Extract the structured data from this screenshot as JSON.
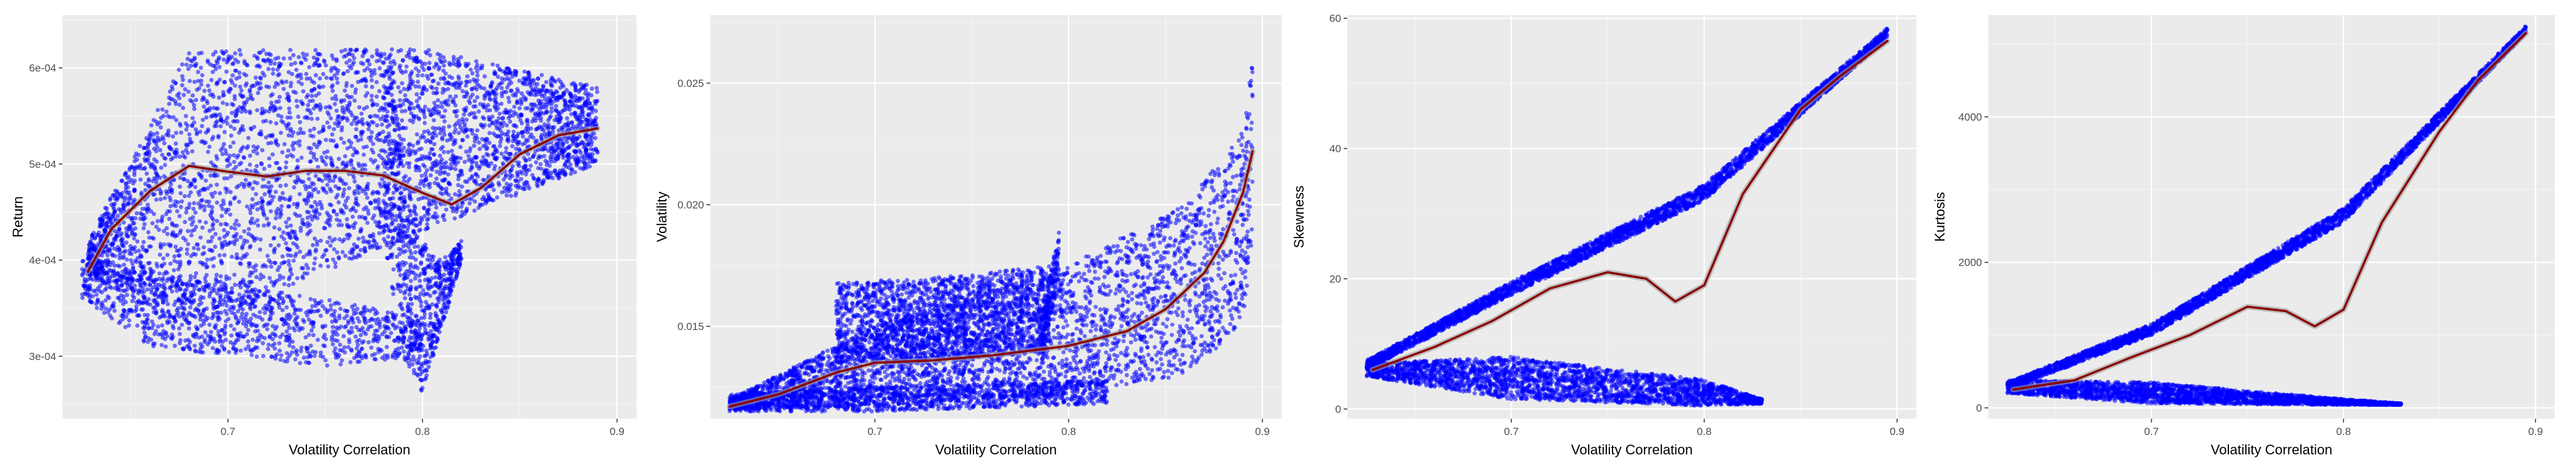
{
  "colors": {
    "panel_background": "#ebebeb",
    "grid_major": "#ffffff",
    "grid_minor": "#f5f5f5",
    "points": "#0000ff",
    "smooth_line": "#8b0000",
    "smooth_band": "#9e9e9e"
  },
  "chart_data": [
    {
      "type": "scatter",
      "title": "",
      "xlabel": "Volatility Correlation",
      "ylabel": "Return",
      "xlim": [
        0.615,
        0.91
      ],
      "ylim": [
        0.000235,
        0.000655
      ],
      "xticks": [
        0.7,
        0.8,
        0.9
      ],
      "xtick_labels": [
        "0.7",
        "0.8",
        "0.9"
      ],
      "yticks": [
        0.0003,
        0.0004,
        0.0005,
        0.0006
      ],
      "ytick_labels": [
        "3e-04",
        "4e-04",
        "5e-04",
        "6e-04"
      ],
      "grid": true,
      "legend": "none",
      "smooth_line": {
        "x": [
          0.628,
          0.64,
          0.66,
          0.68,
          0.7,
          0.72,
          0.74,
          0.76,
          0.78,
          0.8,
          0.815,
          0.83,
          0.85,
          0.87,
          0.89
        ],
        "y": [
          0.000388,
          0.000432,
          0.000472,
          0.000498,
          0.000492,
          0.000487,
          0.000493,
          0.000493,
          0.000488,
          0.00047,
          0.000458,
          0.000475,
          0.00051,
          0.00053,
          0.000537
        ]
      },
      "point_regions": [
        {
          "x": [
            0.628,
            0.68,
            0.8,
            0.89
          ],
          "y_low": [
            0.000385,
            0.00033,
            0.00043,
            0.0005
          ],
          "y_high": [
            0.00042,
            0.000618,
            0.00062,
            0.00058
          ],
          "count": 4200
        },
        {
          "x": [
            0.625,
            0.66,
            0.75,
            0.8
          ],
          "y_low": [
            0.00036,
            0.00031,
            0.00029,
            0.0003
          ],
          "y_high": [
            0.0004,
            0.00039,
            0.00036,
            0.00034
          ],
          "count": 1100
        },
        {
          "x": [
            0.78,
            0.79,
            0.8,
            0.81,
            0.82
          ],
          "y_low": [
            0.00042,
            0.0003,
            0.00026,
            0.00033,
            0.0004
          ],
          "y_high": [
            0.00063,
            0.00052,
            0.00042,
            0.0004,
            0.00042
          ],
          "count": 700
        }
      ]
    },
    {
      "type": "scatter",
      "title": "",
      "xlabel": "Volatility Correlation",
      "ylabel": "Volatility",
      "xlim": [
        0.615,
        0.91
      ],
      "ylim": [
        0.0112,
        0.0278
      ],
      "xticks": [
        0.7,
        0.8,
        0.9
      ],
      "xtick_labels": [
        "0.7",
        "0.8",
        "0.9"
      ],
      "yticks": [
        0.015,
        0.02,
        0.025
      ],
      "ytick_labels": [
        "0.015",
        "0.020",
        "0.025"
      ],
      "grid": true,
      "legend": "none",
      "smooth_line": {
        "x": [
          0.625,
          0.65,
          0.68,
          0.7,
          0.73,
          0.76,
          0.8,
          0.83,
          0.85,
          0.87,
          0.88,
          0.89,
          0.895
        ],
        "y": [
          0.0117,
          0.0122,
          0.0131,
          0.0135,
          0.0136,
          0.0138,
          0.0142,
          0.0148,
          0.0157,
          0.0172,
          0.0185,
          0.0205,
          0.0222
        ]
      },
      "point_regions": [
        {
          "x": [
            0.625,
            0.7,
            0.8,
            0.86,
            0.89,
            0.895
          ],
          "y_low": [
            0.0116,
            0.0117,
            0.0122,
            0.013,
            0.015,
            0.0185
          ],
          "y_high": [
            0.012,
            0.015,
            0.0175,
            0.02,
            0.023,
            0.026
          ],
          "count": 3600
        },
        {
          "x": [
            0.68,
            0.73,
            0.79
          ],
          "y_low": [
            0.0135,
            0.0135,
            0.014
          ],
          "y_high": [
            0.0168,
            0.017,
            0.0175
          ],
          "count": 1700
        },
        {
          "x": [
            0.625,
            0.7,
            0.82
          ],
          "y_low": [
            0.0115,
            0.0115,
            0.0118
          ],
          "y_high": [
            0.0122,
            0.0125,
            0.0128
          ],
          "count": 1100
        },
        {
          "x": [
            0.785,
            0.79,
            0.795
          ],
          "y_low": [
            0.013,
            0.015,
            0.017
          ],
          "y_high": [
            0.015,
            0.017,
            0.019
          ],
          "count": 200
        }
      ]
    },
    {
      "type": "scatter",
      "title": "",
      "xlabel": "Volatility Correlation",
      "ylabel": "Skewness",
      "xlim": [
        0.615,
        0.91
      ],
      "ylim": [
        -1.5,
        60.5
      ],
      "xticks": [
        0.7,
        0.8,
        0.9
      ],
      "xtick_labels": [
        "0.7",
        "0.8",
        "0.9"
      ],
      "yticks": [
        0,
        20,
        40,
        60
      ],
      "ytick_labels": [
        "0",
        "20",
        "40",
        "60"
      ],
      "grid": true,
      "legend": "none",
      "smooth_line": {
        "x": [
          0.628,
          0.66,
          0.69,
          0.72,
          0.75,
          0.77,
          0.785,
          0.8,
          0.82,
          0.85,
          0.87,
          0.895
        ],
        "y": [
          6.0,
          9.5,
          13.5,
          18.5,
          21.0,
          20.0,
          16.5,
          19.0,
          33.0,
          46.0,
          51.0,
          56.5
        ]
      },
      "point_regions": [
        {
          "x": [
            0.625,
            0.7,
            0.8,
            0.895
          ],
          "y_low": [
            6.0,
            17.5,
            32.0,
            57.0
          ],
          "y_high": [
            7.5,
            19.5,
            34.5,
            58.5
          ],
          "count": 3000
        },
        {
          "x": [
            0.625,
            0.7,
            0.8,
            0.83
          ],
          "y_low": [
            5.0,
            1.5,
            0.5,
            0.8
          ],
          "y_high": [
            7.0,
            8.0,
            4.5,
            1.5
          ],
          "count": 2600
        }
      ]
    },
    {
      "type": "scatter",
      "title": "",
      "xlabel": "Volatility Correlation",
      "ylabel": "Kurtosis",
      "xlim": [
        0.615,
        0.91
      ],
      "ylim": [
        -150,
        5400
      ],
      "xticks": [
        0.7,
        0.8,
        0.9
      ],
      "xtick_labels": [
        "0.7",
        "0.8",
        "0.9"
      ],
      "yticks": [
        0,
        2000,
        4000
      ],
      "ytick_labels": [
        "0",
        "2000",
        "4000"
      ],
      "grid": true,
      "legend": "none",
      "smooth_line": {
        "x": [
          0.628,
          0.66,
          0.69,
          0.72,
          0.75,
          0.77,
          0.785,
          0.8,
          0.82,
          0.85,
          0.87,
          0.895
        ],
        "y": [
          250,
          380,
          700,
          1000,
          1390,
          1330,
          1120,
          1350,
          2550,
          3800,
          4500,
          5150
        ]
      },
      "point_regions": [
        {
          "x": [
            0.625,
            0.7,
            0.8,
            0.895
          ],
          "y_low": [
            250,
            1000,
            2550,
            5150
          ],
          "y_high": [
            350,
            1150,
            2750,
            5250
          ],
          "count": 3000
        },
        {
          "x": [
            0.625,
            0.7,
            0.8,
            0.83
          ],
          "y_low": [
            200,
            60,
            40,
            40
          ],
          "y_high": [
            380,
            350,
            120,
            60
          ],
          "count": 2600
        }
      ]
    }
  ]
}
